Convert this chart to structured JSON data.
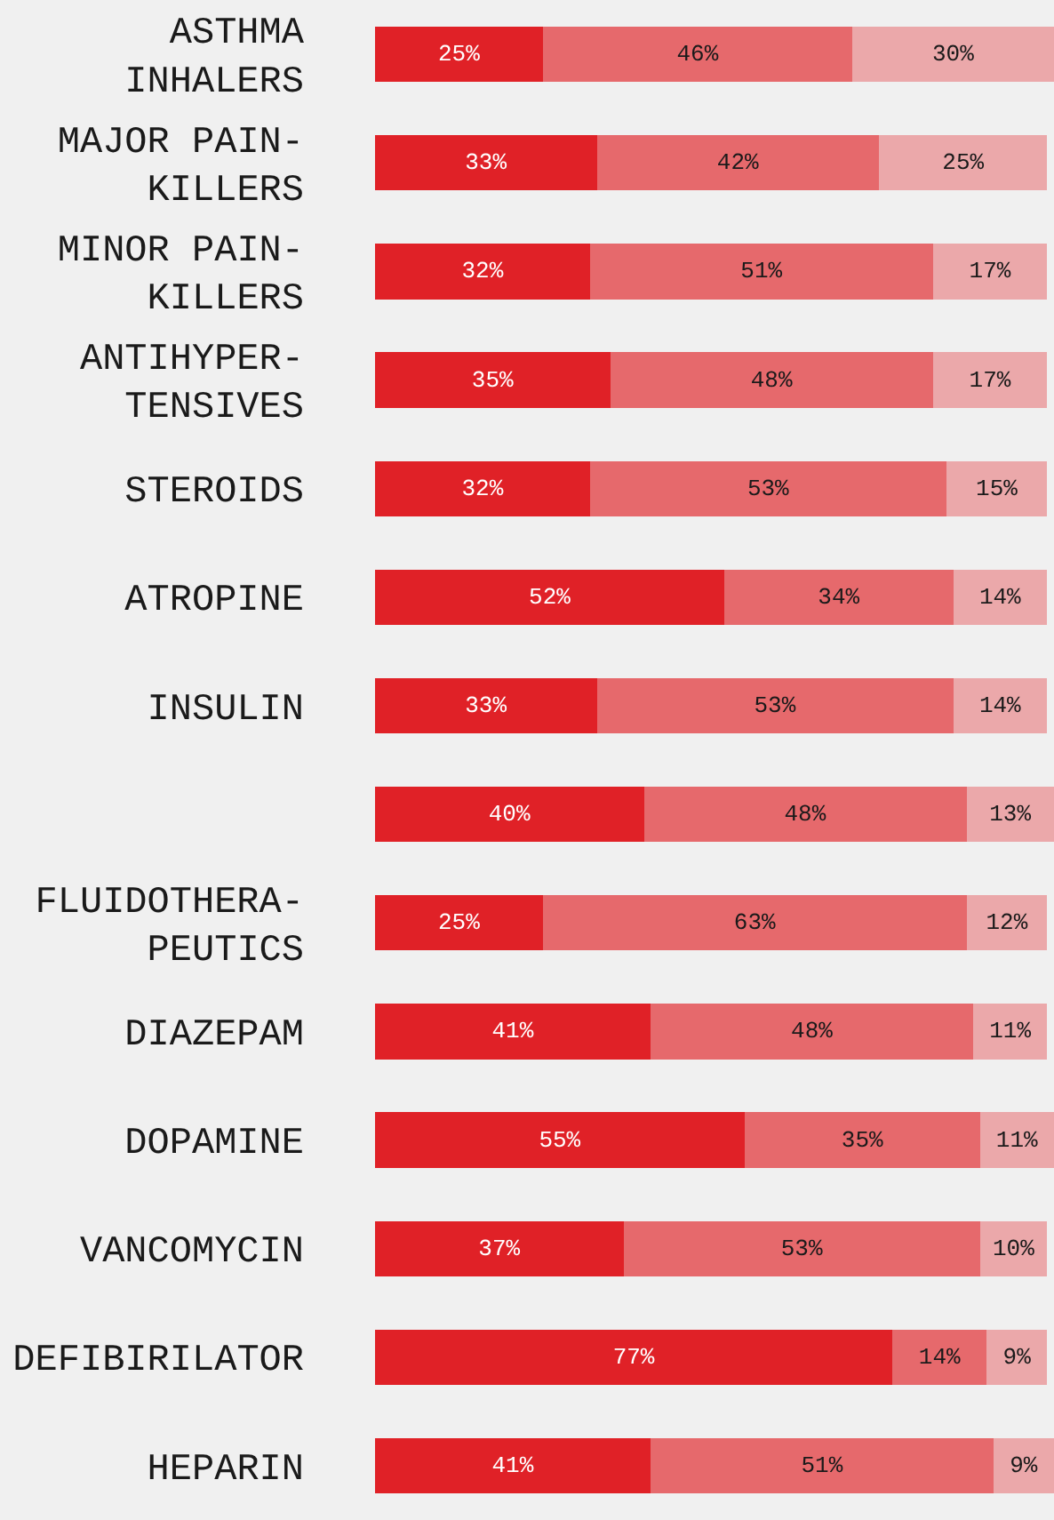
{
  "chart_data": {
    "type": "bar",
    "orientation": "horizontal",
    "stacked": true,
    "tick_labels": "y",
    "categories": [
      "ASTHMA\nINHALERS",
      "MAJOR PAIN-\nKILLERS",
      "MINOR PAIN-\nKILLERS",
      "ANTIHYPER-\nTENSIVES",
      "STEROIDS",
      "ATROPINE",
      "INSULIN",
      null,
      "FLUIDOTHERA-\nPEUTICS",
      "DIAZEPAM",
      "DOPAMINE",
      "VANCOMYCIN",
      "DEFIBIRILATOR",
      "HEPARIN"
    ],
    "series": [
      {
        "color": "#e02127",
        "values": [
          25,
          33,
          32,
          35,
          32,
          52,
          33,
          40,
          25,
          41,
          55,
          37,
          77,
          41
        ],
        "value_labels": [
          "25%",
          "33%",
          "32%",
          "35%",
          "32%",
          "52%",
          "33%",
          "40%",
          "25%",
          "41%",
          "55%",
          "37%",
          "77%",
          "41%"
        ]
      },
      {
        "color": "#e6696c",
        "values": [
          46,
          42,
          51,
          48,
          53,
          34,
          53,
          48,
          63,
          48,
          35,
          53,
          14,
          51
        ],
        "value_labels": [
          "46%",
          "42%",
          "51%",
          "48%",
          "53%",
          "34%",
          "53%",
          "48%",
          "63%",
          "48%",
          "35%",
          "53%",
          "14%",
          "51%"
        ]
      },
      {
        "color": "#eba8aa",
        "values": [
          30,
          25,
          17,
          17,
          15,
          14,
          14,
          13,
          12,
          11,
          11,
          10,
          9,
          9
        ],
        "value_labels": [
          "30%",
          "25%",
          "17%",
          "17%",
          "15%",
          "14%",
          "14%",
          "13%",
          "12%",
          "11%",
          "11%",
          "10%",
          "9%",
          "9%"
        ]
      }
    ]
  }
}
